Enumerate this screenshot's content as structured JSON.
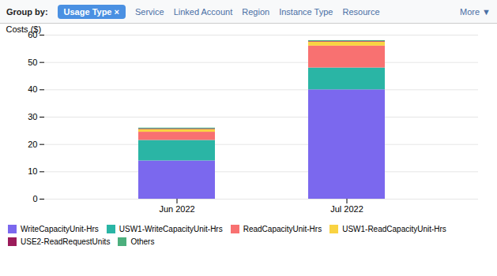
{
  "chart_data": {
    "type": "bar",
    "stacked": true,
    "categories": [
      "Jun 2022",
      "Jul 2022"
    ],
    "series": [
      {
        "name": "WriteCapacityUnit-Hrs",
        "color": "#7b68ee",
        "values": [
          14.0,
          40.0
        ]
      },
      {
        "name": "USW1-WriteCapacityUnit-Hrs",
        "color": "#2ab5a5",
        "values": [
          7.5,
          8.0
        ]
      },
      {
        "name": "ReadCapacityUnit-Hrs",
        "color": "#f87171",
        "values": [
          3.0,
          8.0
        ]
      },
      {
        "name": "USW1-ReadCapacityUnit-Hrs",
        "color": "#f9d342",
        "values": [
          1.0,
          1.5
        ]
      },
      {
        "name": "USE2-ReadRequestUnits",
        "color": "#9b1b5a",
        "values": [
          0.2,
          0.2
        ]
      },
      {
        "name": "Others",
        "color": "#4caf7d",
        "values": [
          0.3,
          0.3
        ]
      }
    ],
    "ylabel": "Costs ($)",
    "ylim": [
      0,
      60
    ],
    "yticks": [
      0,
      10,
      20,
      30,
      40,
      50,
      60
    ],
    "grid": true,
    "legend": "bottom",
    "annotations": [
      "Group by:",
      "Usage Type ×",
      "Service",
      "Linked Account",
      "Region",
      "Instance Type",
      "Resource",
      "More ▼"
    ]
  }
}
